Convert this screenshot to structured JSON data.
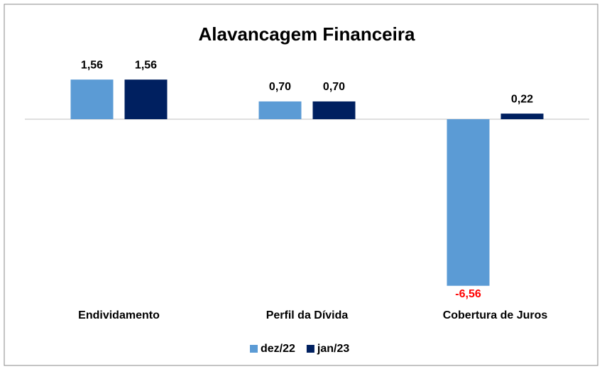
{
  "chart_data": {
    "type": "bar",
    "title": "Alavancagem Financeira",
    "categories": [
      "Endividamento",
      "Perfil da Dívida",
      "Cobertura de Juros"
    ],
    "series": [
      {
        "name": "dez/22",
        "color": "#5b9bd5",
        "values": [
          1.56,
          0.7,
          -6.56
        ],
        "value_labels": [
          "1,56",
          "0,70",
          "-6,56"
        ]
      },
      {
        "name": "jan/23",
        "color": "#002060",
        "values": [
          1.56,
          0.7,
          0.22
        ],
        "value_labels": [
          "1,56",
          "0,70",
          "0,22"
        ]
      }
    ],
    "ylim": [
      -7,
      2.5
    ],
    "negative_label_color": "#ff0000",
    "legend": "bottom"
  }
}
